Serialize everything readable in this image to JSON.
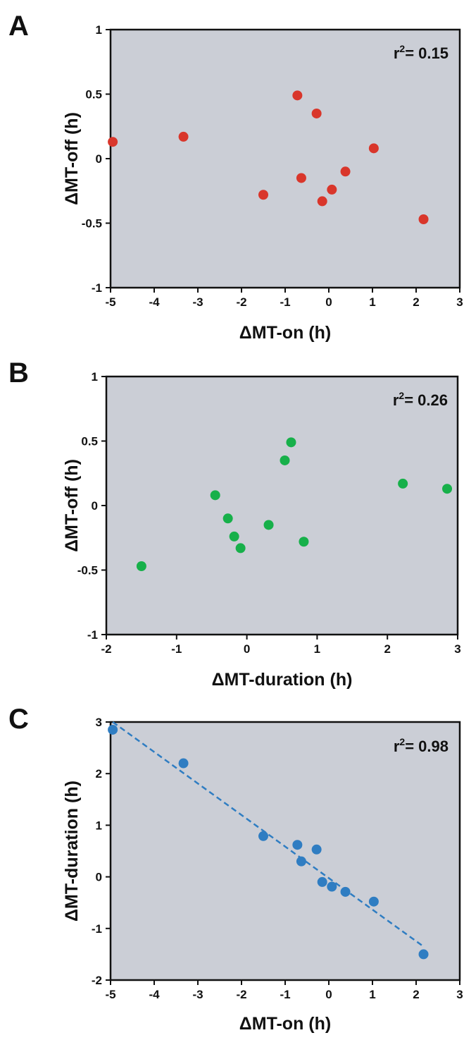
{
  "chart_data": [
    {
      "panel": "A",
      "type": "scatter",
      "xlabel": "ΔMT-on (h)",
      "ylabel": "ΔMT-off (h)",
      "xlim": [
        -5,
        3
      ],
      "ylim": [
        -1,
        1
      ],
      "xticks": [
        "-5",
        "-4",
        "-3",
        "-2",
        "-1",
        "0",
        "1",
        "2",
        "3"
      ],
      "yticks": [
        "1",
        "0.5",
        "0",
        "-0.5",
        "-1"
      ],
      "annotation": {
        "prefix": "r",
        "sup": "2",
        "suffix": "= 0.15"
      },
      "marker_color": "#d9362b",
      "trendline": false,
      "points": [
        {
          "x": -4.95,
          "y": 0.13
        },
        {
          "x": -3.33,
          "y": 0.17
        },
        {
          "x": -1.5,
          "y": -0.28
        },
        {
          "x": -0.72,
          "y": 0.49
        },
        {
          "x": -0.63,
          "y": -0.15
        },
        {
          "x": -0.28,
          "y": 0.35
        },
        {
          "x": -0.15,
          "y": -0.33
        },
        {
          "x": 0.07,
          "y": -0.24
        },
        {
          "x": 0.38,
          "y": -0.1
        },
        {
          "x": 1.03,
          "y": 0.08
        },
        {
          "x": 2.17,
          "y": -0.47
        }
      ]
    },
    {
      "panel": "B",
      "type": "scatter",
      "xlabel": "ΔMT-duration (h)",
      "ylabel": "ΔMT-off (h)",
      "xlim": [
        -2,
        3
      ],
      "ylim": [
        -1,
        1
      ],
      "xticks": [
        "-2",
        "-1",
        "0",
        "1",
        "2",
        "3"
      ],
      "yticks": [
        "1",
        "0.5",
        "0",
        "-0.5",
        "-1"
      ],
      "annotation": {
        "prefix": "r",
        "sup": "2",
        "suffix": "= 0.26"
      },
      "marker_color": "#17b04a",
      "trendline": false,
      "points": [
        {
          "x": -1.5,
          "y": -0.47
        },
        {
          "x": -0.45,
          "y": 0.08
        },
        {
          "x": -0.27,
          "y": -0.1
        },
        {
          "x": -0.18,
          "y": -0.24
        },
        {
          "x": -0.09,
          "y": -0.33
        },
        {
          "x": 0.31,
          "y": -0.15
        },
        {
          "x": 0.54,
          "y": 0.35
        },
        {
          "x": 0.63,
          "y": 0.49
        },
        {
          "x": 0.81,
          "y": -0.28
        },
        {
          "x": 2.22,
          "y": 0.17
        },
        {
          "x": 2.85,
          "y": 0.13
        }
      ]
    },
    {
      "panel": "C",
      "type": "scatter",
      "xlabel": "ΔMT-on (h)",
      "ylabel": "ΔMT-duration (h)",
      "xlim": [
        -5,
        3
      ],
      "ylim": [
        -2,
        3
      ],
      "xticks": [
        "-5",
        "-4",
        "-3",
        "-2",
        "-1",
        "0",
        "1",
        "2",
        "3"
      ],
      "yticks": [
        "3",
        "2",
        "1",
        "0",
        "-1",
        "-2"
      ],
      "annotation": {
        "prefix": "r",
        "sup": "2",
        "suffix": "= 0.98"
      },
      "marker_color": "#2f7dc2",
      "trendline": true,
      "trendline_points": [
        {
          "x": -4.95,
          "y": 3.0
        },
        {
          "x": 2.17,
          "y": -1.35
        }
      ],
      "points": [
        {
          "x": -4.95,
          "y": 2.85
        },
        {
          "x": -3.33,
          "y": 2.2
        },
        {
          "x": -1.5,
          "y": 0.79
        },
        {
          "x": -0.72,
          "y": 0.62
        },
        {
          "x": -0.63,
          "y": 0.3
        },
        {
          "x": -0.28,
          "y": 0.53
        },
        {
          "x": -0.15,
          "y": -0.1
        },
        {
          "x": 0.07,
          "y": -0.19
        },
        {
          "x": 0.38,
          "y": -0.29
        },
        {
          "x": 1.03,
          "y": -0.48
        },
        {
          "x": 2.17,
          "y": -1.5
        }
      ]
    }
  ]
}
